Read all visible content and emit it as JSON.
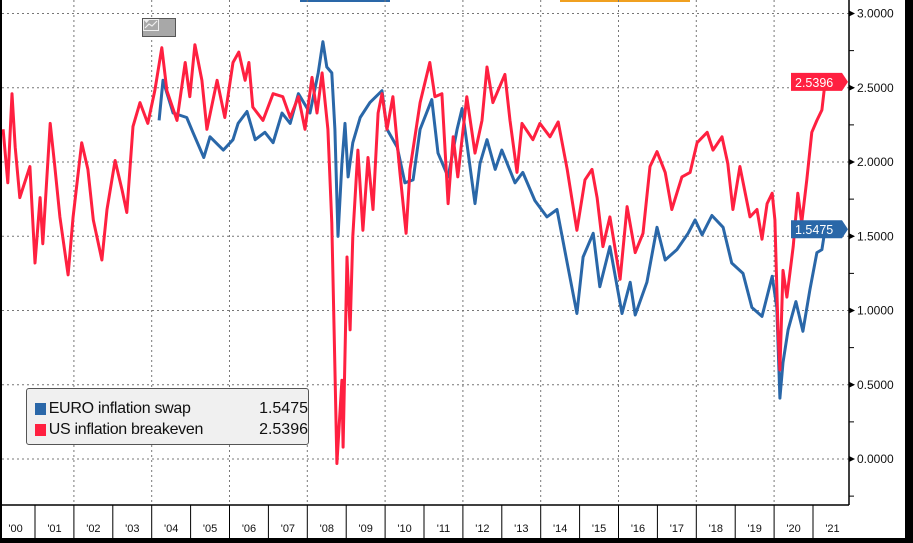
{
  "chart_data": {
    "type": "line",
    "title": "",
    "xlabel": "",
    "ylabel": "",
    "xlim": [
      2000.1,
      2021.6
    ],
    "ylim": [
      -0.3,
      3.1
    ],
    "y_ticks": [
      "3.0000",
      "2.5000",
      "2.0000",
      "1.5000",
      "1.0000",
      "0.5000",
      "0.0000"
    ],
    "y_tick_values": [
      3.0,
      2.5,
      2.0,
      1.5,
      1.0,
      0.5,
      0.0
    ],
    "x_tick_labels": [
      "'00",
      "'01",
      "'02",
      "'03",
      "'04",
      "'05",
      "'06",
      "'07",
      "'08",
      "'09",
      "'10",
      "'11",
      "'12",
      "'13",
      "'14",
      "'15",
      "'16",
      "'17",
      "'18",
      "'19",
      "'20",
      "'21"
    ],
    "grid": true,
    "legend_position": "bottom-left",
    "series": [
      {
        "name": "EURO inflation swap",
        "last_value": "1.5475",
        "color": "#2a67a8",
        "x": [
          2004.19,
          2004.29,
          2004.55,
          2004.9,
          2005.06,
          2005.34,
          2005.5,
          2005.84,
          2006.09,
          2006.22,
          2006.45,
          2006.66,
          2006.91,
          2007.12,
          2007.35,
          2007.56,
          2007.77,
          2008.07,
          2008.28,
          2008.4,
          2008.5,
          2008.63,
          2008.71,
          2008.79,
          2008.89,
          2008.97,
          2009.05,
          2009.17,
          2009.36,
          2009.61,
          2009.92,
          2010.05,
          2010.31,
          2010.51,
          2010.72,
          2010.9,
          2011.2,
          2011.36,
          2011.62,
          2011.85,
          2011.98,
          2012.1,
          2012.31,
          2012.44,
          2012.62,
          2012.83,
          2013.0,
          2013.34,
          2013.54,
          2013.85,
          2014.16,
          2014.42,
          2014.68,
          2014.93,
          2015.09,
          2015.35,
          2015.52,
          2015.78,
          2016.09,
          2016.3,
          2016.43,
          2016.73,
          2016.99,
          2017.2,
          2017.5,
          2017.79,
          2017.97,
          2018.15,
          2018.4,
          2018.69,
          2018.91,
          2019.2,
          2019.43,
          2019.69,
          2019.95,
          2020.07,
          2020.15,
          2020.23,
          2020.36,
          2020.56,
          2020.74,
          2020.92,
          2021.1,
          2021.23,
          2021.31
        ],
        "values": [
          2.28,
          2.55,
          2.33,
          2.3,
          2.2,
          2.03,
          2.17,
          2.08,
          2.15,
          2.26,
          2.34,
          2.15,
          2.2,
          2.13,
          2.33,
          2.26,
          2.46,
          2.33,
          2.6,
          2.81,
          2.64,
          2.6,
          2.22,
          1.5,
          1.99,
          2.26,
          1.9,
          2.13,
          2.3,
          2.4,
          2.48,
          2.22,
          2.1,
          1.86,
          1.88,
          2.22,
          2.42,
          2.06,
          1.9,
          2.22,
          2.36,
          2.13,
          1.72,
          1.99,
          2.15,
          1.95,
          2.08,
          1.86,
          1.93,
          1.74,
          1.63,
          1.68,
          1.32,
          0.98,
          1.36,
          1.52,
          1.16,
          1.43,
          0.98,
          1.19,
          0.97,
          1.19,
          1.56,
          1.34,
          1.41,
          1.52,
          1.61,
          1.51,
          1.64,
          1.56,
          1.32,
          1.25,
          1.02,
          0.96,
          1.23,
          1.02,
          0.41,
          0.65,
          0.87,
          1.06,
          0.86,
          1.14,
          1.39,
          1.41,
          1.5475
        ]
      },
      {
        "name": "US inflation breakeven",
        "last_value": "2.5396",
        "color": "#ff2040",
        "x": [
          2000.18,
          2000.3,
          2000.41,
          2000.49,
          2000.61,
          2000.87,
          2001.0,
          2001.13,
          2001.2,
          2001.39,
          2001.5,
          2001.64,
          2001.85,
          2001.98,
          2002.2,
          2002.36,
          2002.5,
          2002.72,
          2002.85,
          2003.06,
          2003.24,
          2003.36,
          2003.52,
          2003.7,
          2003.9,
          2004.08,
          2004.26,
          2004.39,
          2004.65,
          2004.86,
          2004.98,
          2005.11,
          2005.29,
          2005.42,
          2005.68,
          2005.88,
          2006.09,
          2006.24,
          2006.4,
          2006.5,
          2006.6,
          2006.86,
          2007.12,
          2007.37,
          2007.56,
          2007.77,
          2007.94,
          2008.12,
          2008.25,
          2008.38,
          2008.53,
          2008.63,
          2008.69,
          2008.76,
          2008.89,
          2008.92,
          2009.02,
          2009.1,
          2009.17,
          2009.3,
          2009.43,
          2009.56,
          2009.69,
          2009.82,
          2009.92,
          2010.05,
          2010.2,
          2010.38,
          2010.54,
          2010.64,
          2010.9,
          2011.15,
          2011.28,
          2011.46,
          2011.62,
          2011.75,
          2011.87,
          2012.1,
          2012.31,
          2012.49,
          2012.62,
          2012.77,
          2013.08,
          2013.21,
          2013.39,
          2013.52,
          2013.8,
          2013.98,
          2014.24,
          2014.45,
          2014.68,
          2014.93,
          2015.14,
          2015.32,
          2015.45,
          2015.6,
          2015.78,
          2016.04,
          2016.22,
          2016.43,
          2016.63,
          2016.81,
          2016.99,
          2017.2,
          2017.37,
          2017.63,
          2017.84,
          2018.02,
          2018.28,
          2018.43,
          2018.66,
          2018.81,
          2018.94,
          2019.12,
          2019.38,
          2019.56,
          2019.69,
          2019.82,
          2019.95,
          2020.02,
          2020.1,
          2020.15,
          2020.23,
          2020.33,
          2020.49,
          2020.61,
          2020.71,
          2020.84,
          2020.97,
          2021.1,
          2021.23,
          2021.31
        ],
        "values": [
          2.22,
          1.86,
          2.46,
          2.1,
          1.76,
          1.97,
          1.32,
          1.76,
          1.45,
          2.26,
          1.99,
          1.63,
          1.24,
          1.63,
          2.13,
          1.95,
          1.61,
          1.34,
          1.68,
          2.01,
          1.81,
          1.66,
          2.24,
          2.4,
          2.26,
          2.48,
          2.77,
          2.48,
          2.28,
          2.67,
          2.44,
          2.79,
          2.55,
          2.22,
          2.55,
          2.3,
          2.67,
          2.74,
          2.55,
          2.67,
          2.37,
          2.28,
          2.46,
          2.44,
          2.3,
          2.44,
          2.22,
          2.57,
          2.33,
          2.6,
          2.22,
          1.59,
          0.87,
          -0.03,
          0.53,
          0.08,
          1.36,
          0.87,
          1.5,
          2.08,
          1.54,
          2.03,
          1.68,
          2.33,
          2.46,
          2.22,
          2.44,
          1.93,
          1.52,
          1.95,
          2.4,
          2.67,
          2.44,
          2.46,
          1.72,
          2.17,
          1.9,
          2.44,
          2.06,
          2.28,
          2.64,
          2.4,
          2.59,
          2.28,
          1.93,
          2.26,
          2.15,
          2.26,
          2.17,
          2.27,
          1.95,
          1.54,
          1.88,
          1.95,
          1.76,
          1.43,
          1.63,
          1.21,
          1.7,
          1.39,
          1.52,
          1.97,
          2.07,
          1.93,
          1.68,
          1.9,
          1.93,
          2.13,
          2.2,
          2.08,
          2.17,
          1.99,
          1.68,
          1.97,
          1.63,
          1.68,
          1.48,
          1.72,
          1.79,
          1.61,
          0.87,
          0.6,
          1.27,
          1.09,
          1.43,
          1.79,
          1.59,
          1.88,
          2.2,
          2.28,
          2.35,
          2.5396
        ]
      }
    ]
  },
  "legend": {
    "items": [
      {
        "name": "EURO inflation swap",
        "value": "1.5475",
        "color": "#2a67a8"
      },
      {
        "name": "US inflation breakeven",
        "value": "2.5396",
        "color": "#ff2040"
      }
    ]
  },
  "badges": {
    "us": {
      "value": "2.5396",
      "color": "#ff2040"
    },
    "euro": {
      "value": "1.5475",
      "color": "#2a67a8"
    }
  }
}
